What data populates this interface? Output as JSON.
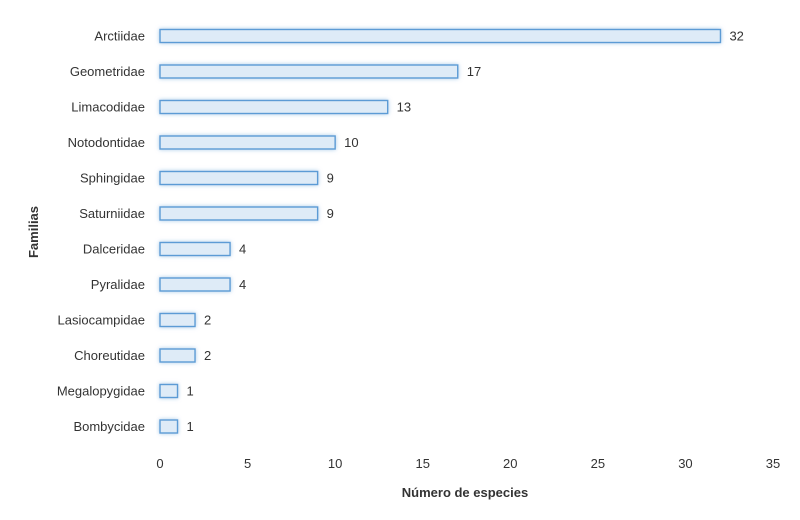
{
  "chart_data": {
    "type": "bar",
    "orientation": "horizontal",
    "categories": [
      "Arctiidae",
      "Geometridae",
      "Limacodidae",
      "Notodontidae",
      "Sphingidae",
      "Saturniidae",
      "Dalceridae",
      "Pyralidae",
      "Lasiocampidae",
      "Choreutidae",
      "Megalopygidae",
      "Bombycidae"
    ],
    "values": [
      32,
      17,
      13,
      10,
      9,
      9,
      4,
      4,
      2,
      2,
      1,
      1
    ],
    "data_labels": [
      "32",
      "17",
      "13",
      "10",
      "9",
      "9",
      "4",
      "4",
      "2",
      "2",
      "1",
      "1"
    ],
    "xlabel": "Número de especies",
    "ylabel": "Familias",
    "xlim": [
      0,
      35
    ],
    "xticks": [
      "0",
      "5",
      "10",
      "15",
      "20",
      "25",
      "30",
      "35"
    ],
    "grid": false,
    "colors": {
      "bar_fill": "#deebf7",
      "bar_stroke": "#5b9bd5",
      "bar_glow": "#9dc3e6",
      "text": "#333333"
    }
  }
}
